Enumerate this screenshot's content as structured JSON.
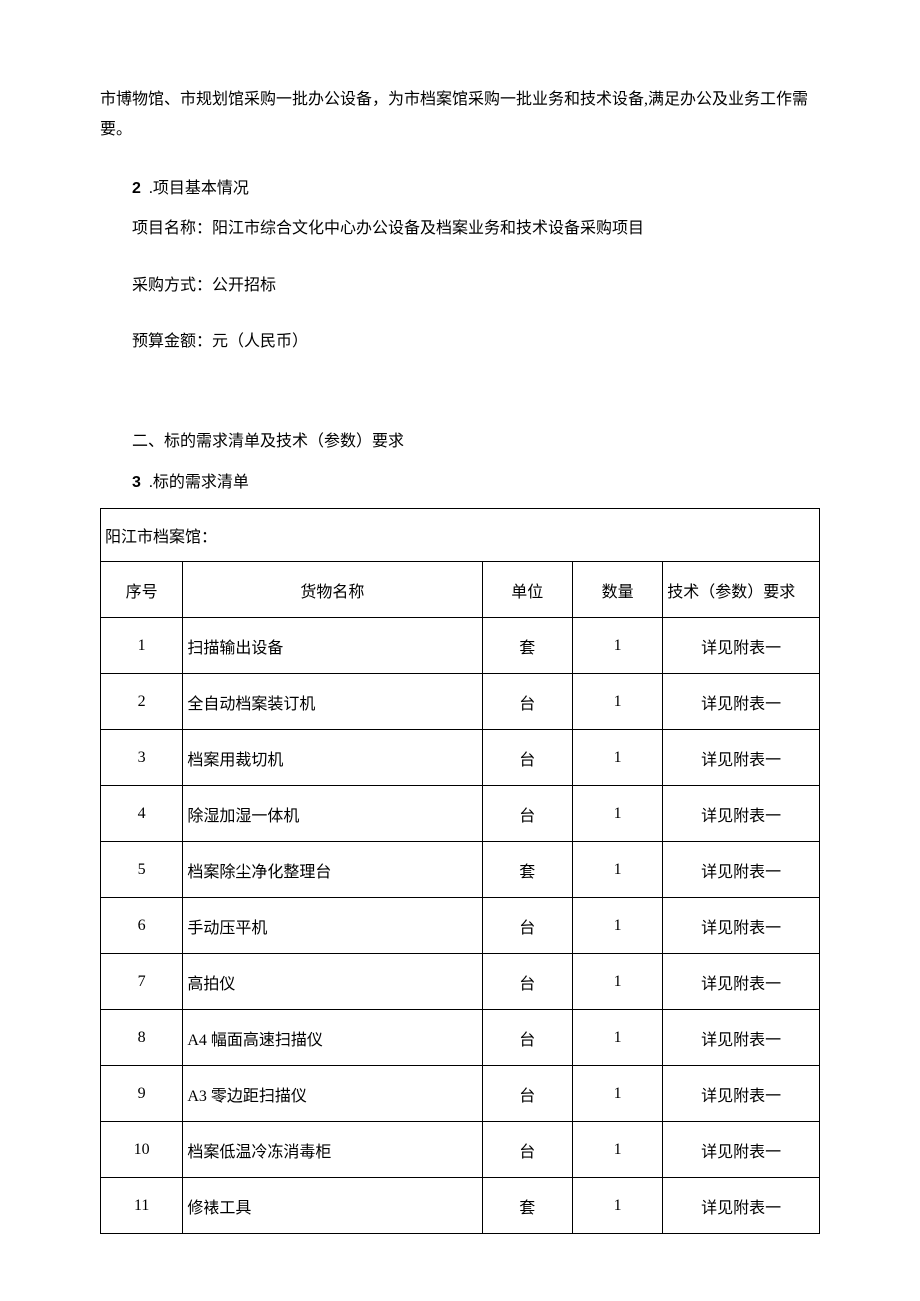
{
  "intro_text": "市博物馆、市规划馆采购一批办公设备，为市档案馆采购一批业务和技术设备,满足办公及业务工作需要。",
  "section1": {
    "num": "2",
    "title": ".项目基本情况",
    "project_name_line": "项目名称：阳江市综合文化中心办公设备及档案业务和技术设备采购项目",
    "method_line": "采购方式：公开招标",
    "budget_line": "预算金额：元（人民币）"
  },
  "section2": {
    "heading": "二、标的需求清单及技术（参数）要求",
    "num": "3",
    "title": ".标的需求清单"
  },
  "table": {
    "title": "阳江市档案馆：",
    "headers": {
      "seq": "序号",
      "name": "货物名称",
      "unit": "单位",
      "qty": "数量",
      "tech": "技术（参数）要求"
    },
    "rows": [
      {
        "seq": "1",
        "name": "扫描输出设备",
        "unit": "套",
        "qty": "1",
        "tech": "详见附表一"
      },
      {
        "seq": "2",
        "name": "全自动档案装订机",
        "unit": "台",
        "qty": "1",
        "tech": "详见附表一"
      },
      {
        "seq": "3",
        "name": "档案用裁切机",
        "unit": "台",
        "qty": "1",
        "tech": "详见附表一"
      },
      {
        "seq": "4",
        "name": "除湿加湿一体机",
        "unit": "台",
        "qty": "1",
        "tech": "详见附表一"
      },
      {
        "seq": "5",
        "name": "档案除尘净化整理台",
        "unit": "套",
        "qty": "1",
        "tech": "详见附表一"
      },
      {
        "seq": "6",
        "name": "手动压平机",
        "unit": "台",
        "qty": "1",
        "tech": "详见附表一"
      },
      {
        "seq": "7",
        "name": "高拍仪",
        "unit": "台",
        "qty": "1",
        "tech": "详见附表一"
      },
      {
        "seq": "8",
        "name": "A4 幅面高速扫描仪",
        "unit": "台",
        "qty": "1",
        "tech": "详见附表一"
      },
      {
        "seq": "9",
        "name": "A3 零边距扫描仪",
        "unit": "台",
        "qty": "1",
        "tech": "详见附表一"
      },
      {
        "seq": "10",
        "name": "档案低温冷冻消毒柜",
        "unit": "台",
        "qty": "1",
        "tech": "详见附表一"
      },
      {
        "seq": "11",
        "name": "修裱工具",
        "unit": "套",
        "qty": "1",
        "tech": "详见附表一"
      }
    ]
  }
}
